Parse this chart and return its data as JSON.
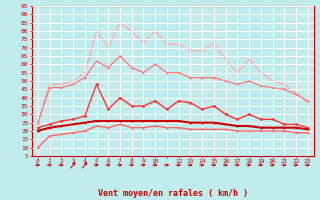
{
  "x_labels": [
    "0",
    "1",
    "2",
    "3",
    "4",
    "5",
    "6",
    "7",
    "8",
    "9",
    "10",
    "",
    "12",
    "13",
    "14",
    "15",
    "16",
    "17",
    "18",
    "19",
    "20",
    "21",
    "22",
    "23"
  ],
  "x_values": [
    0,
    1,
    2,
    3,
    4,
    5,
    6,
    7,
    8,
    9,
    10,
    11,
    12,
    13,
    14,
    15,
    16,
    17,
    18,
    19,
    20,
    21,
    22,
    23
  ],
  "bg_color": "#c0ecee",
  "grid_color": "#aadddd",
  "xlabel": "Vent moyen/en rafales ( km/h )",
  "xlabel_color": "#cc0000",
  "tick_color": "#cc0000",
  "arrow_color": "#cc0000",
  "spine_color": "#cc0000",
  "ylim_min": 5,
  "ylim_max": 95,
  "yticks": [
    5,
    10,
    15,
    20,
    25,
    30,
    35,
    40,
    45,
    50,
    55,
    60,
    65,
    70,
    75,
    80,
    85,
    90,
    95
  ],
  "line_gust_peak_color": "#ffaaaa",
  "line_gust_avg_color": "#ff7777",
  "line_mean_max_color": "#ff3333",
  "line_mean_avg_color": "#cc0000",
  "line_mean_min_color": "#ff6666",
  "line_gust_peak": [
    25,
    48,
    48,
    50,
    55,
    80,
    70,
    85,
    80,
    73,
    80,
    72,
    72,
    68,
    68,
    73,
    63,
    55,
    63,
    55,
    50,
    48,
    43,
    37
  ],
  "line_gust_avg": [
    25,
    46,
    46,
    48,
    52,
    62,
    58,
    65,
    58,
    55,
    60,
    55,
    55,
    52,
    52,
    52,
    50,
    48,
    50,
    47,
    46,
    45,
    42,
    38
  ],
  "line_mean_max": [
    22,
    24,
    26,
    27,
    29,
    48,
    33,
    40,
    35,
    35,
    38,
    33,
    38,
    37,
    33,
    35,
    30,
    27,
    30,
    27,
    27,
    24,
    24,
    22
  ],
  "line_mean_avg": [
    20,
    22,
    23,
    24,
    25,
    26,
    26,
    26,
    26,
    26,
    26,
    26,
    26,
    25,
    25,
    25,
    24,
    23,
    23,
    22,
    22,
    22,
    22,
    21
  ],
  "line_mean_min": [
    10,
    17,
    18,
    19,
    20,
    23,
    22,
    24,
    22,
    22,
    23,
    22,
    22,
    21,
    21,
    21,
    21,
    20,
    20,
    20,
    20,
    20,
    19,
    19
  ],
  "arrows_angle": [
    2,
    2,
    2,
    3,
    3,
    2,
    2,
    2,
    2,
    2,
    2,
    2,
    2,
    2,
    2,
    2,
    2,
    2,
    2,
    2,
    2,
    2,
    2,
    2
  ]
}
